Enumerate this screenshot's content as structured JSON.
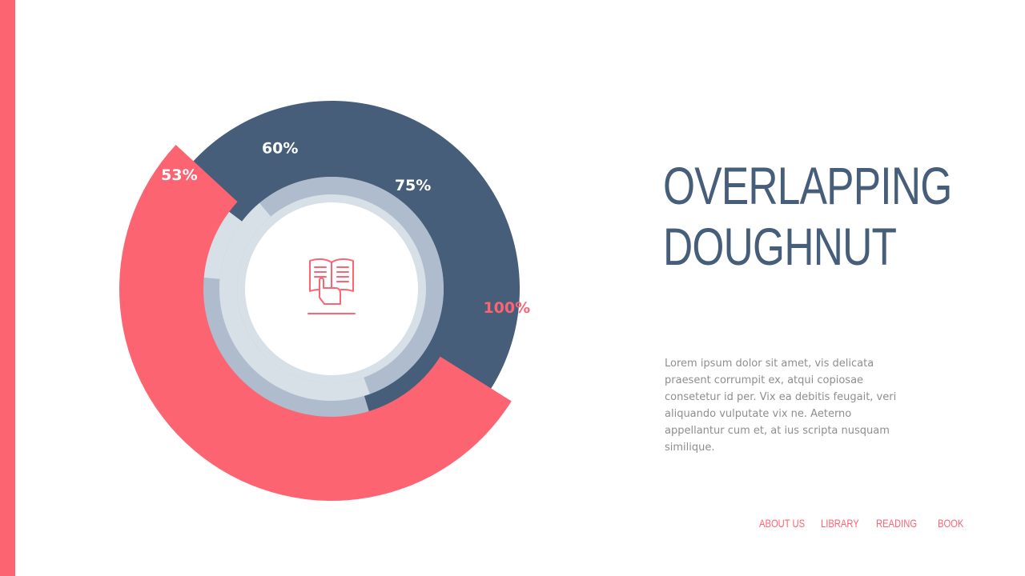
{
  "colors": {
    "accent": "#fd6472",
    "navy": "#465e7a",
    "steel": "#aebccd",
    "pale": "#d7dfe7",
    "white": "#ffffff"
  },
  "title": {
    "line1": "OVERLAPPING",
    "line2": "DOUGHNUT"
  },
  "body_text": "Lorem ipsum dolor sit amet, vis delicata praesent corrumpit ex, atqui copiosae consetetur id per. Vix ea debitis feugait, veri aliquando vulputate vix ne. Aeterno appellantur cum et, at ius scripta nusquam similique.",
  "nav": [
    {
      "label": "ABOUT US"
    },
    {
      "label": "LIBRARY"
    },
    {
      "label": "READING"
    },
    {
      "label": "BOOK"
    }
  ],
  "center_icon": "open-book-hand-icon",
  "chart_data": {
    "type": "pie",
    "style": "overlapping-doughnut",
    "series": [
      {
        "label": "100%",
        "value": 100,
        "color": "#d7dfe7"
      },
      {
        "label": "75%",
        "value": 75,
        "color": "#aebccd"
      },
      {
        "label": "60%",
        "value": 60,
        "color": "#465e7a"
      },
      {
        "label": "53%",
        "value": 53,
        "color": "#fd6472"
      }
    ]
  }
}
